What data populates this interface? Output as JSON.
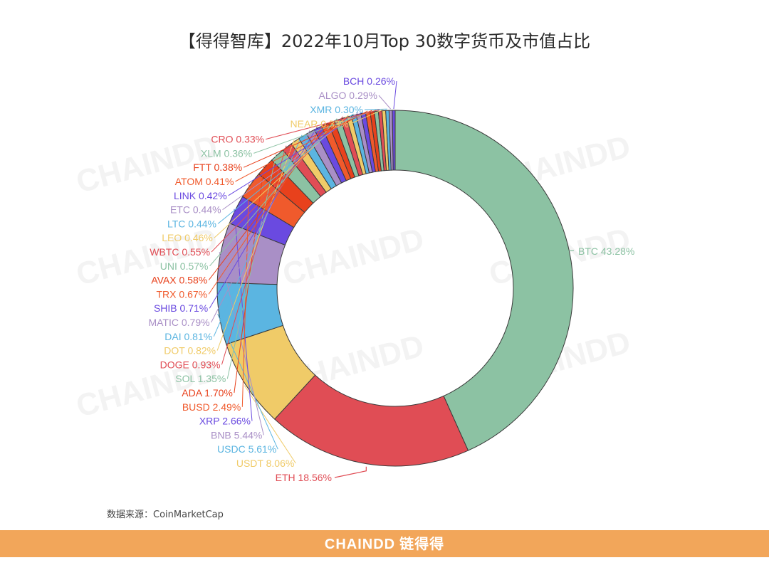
{
  "header": {
    "title": "【得得智库】2022年10月Top 30数字货币及市值占比"
  },
  "chart_data": {
    "type": "pie",
    "variant": "donut",
    "start_angle_deg": 0,
    "direction": "clockwise",
    "label_format": "{name} {value}%",
    "slices": [
      {
        "name": "BTC",
        "value": 43.28,
        "color": "#8cc2a3"
      },
      {
        "name": "ETH",
        "value": 18.56,
        "color": "#e04d55"
      },
      {
        "name": "USDT",
        "value": 8.06,
        "color": "#f0cb68"
      },
      {
        "name": "USDC",
        "value": 5.61,
        "color": "#5bb5e1"
      },
      {
        "name": "BNB",
        "value": 5.44,
        "color": "#a98fc6"
      },
      {
        "name": "XRP",
        "value": 2.66,
        "color": "#6a4ae0"
      },
      {
        "name": "BUSD",
        "value": 2.49,
        "color": "#f05a2c"
      },
      {
        "name": "ADA",
        "value": 1.7,
        "color": "#e8411c"
      },
      {
        "name": "SOL",
        "value": 1.35,
        "color": "#8cc2a3"
      },
      {
        "name": "DOGE",
        "value": 0.93,
        "color": "#e04d55"
      },
      {
        "name": "DOT",
        "value": 0.82,
        "color": "#f0cb68"
      },
      {
        "name": "DAI",
        "value": 0.81,
        "color": "#5bb5e1"
      },
      {
        "name": "MATIC",
        "value": 0.79,
        "color": "#a98fc6"
      },
      {
        "name": "SHIB",
        "value": 0.71,
        "color": "#6a4ae0"
      },
      {
        "name": "TRX",
        "value": 0.67,
        "color": "#f05a2c"
      },
      {
        "name": "AVAX",
        "value": 0.58,
        "color": "#e8411c"
      },
      {
        "name": "UNI",
        "value": 0.57,
        "color": "#8cc2a3"
      },
      {
        "name": "WBTC",
        "value": 0.55,
        "color": "#e04d55"
      },
      {
        "name": "LEO",
        "value": 0.46,
        "color": "#f0cb68"
      },
      {
        "name": "LTC",
        "value": 0.44,
        "color": "#5bb5e1"
      },
      {
        "name": "ETC",
        "value": 0.44,
        "color": "#a98fc6"
      },
      {
        "name": "LINK",
        "value": 0.42,
        "color": "#6a4ae0"
      },
      {
        "name": "ATOM",
        "value": 0.41,
        "color": "#f05a2c"
      },
      {
        "name": "FTT",
        "value": 0.38,
        "color": "#e8411c"
      },
      {
        "name": "XLM",
        "value": 0.36,
        "color": "#8cc2a3"
      },
      {
        "name": "CRO",
        "value": 0.33,
        "color": "#e04d55"
      },
      {
        "name": "NEAR",
        "value": 0.33,
        "color": "#f0cb68"
      },
      {
        "name": "XMR",
        "value": 0.3,
        "color": "#5bb5e1"
      },
      {
        "name": "ALGO",
        "value": 0.29,
        "color": "#a98fc6"
      },
      {
        "name": "BCH",
        "value": 0.26,
        "color": "#6a4ae0"
      }
    ]
  },
  "watermark": {
    "text": "CHAINDD",
    "color": "#f3f3f3"
  },
  "source": {
    "text": "数据来源：CoinMarketCap"
  },
  "footer": {
    "brand": "CHAINDD",
    "brand_cn": "链得得",
    "bar_color": "#f2a65a"
  }
}
